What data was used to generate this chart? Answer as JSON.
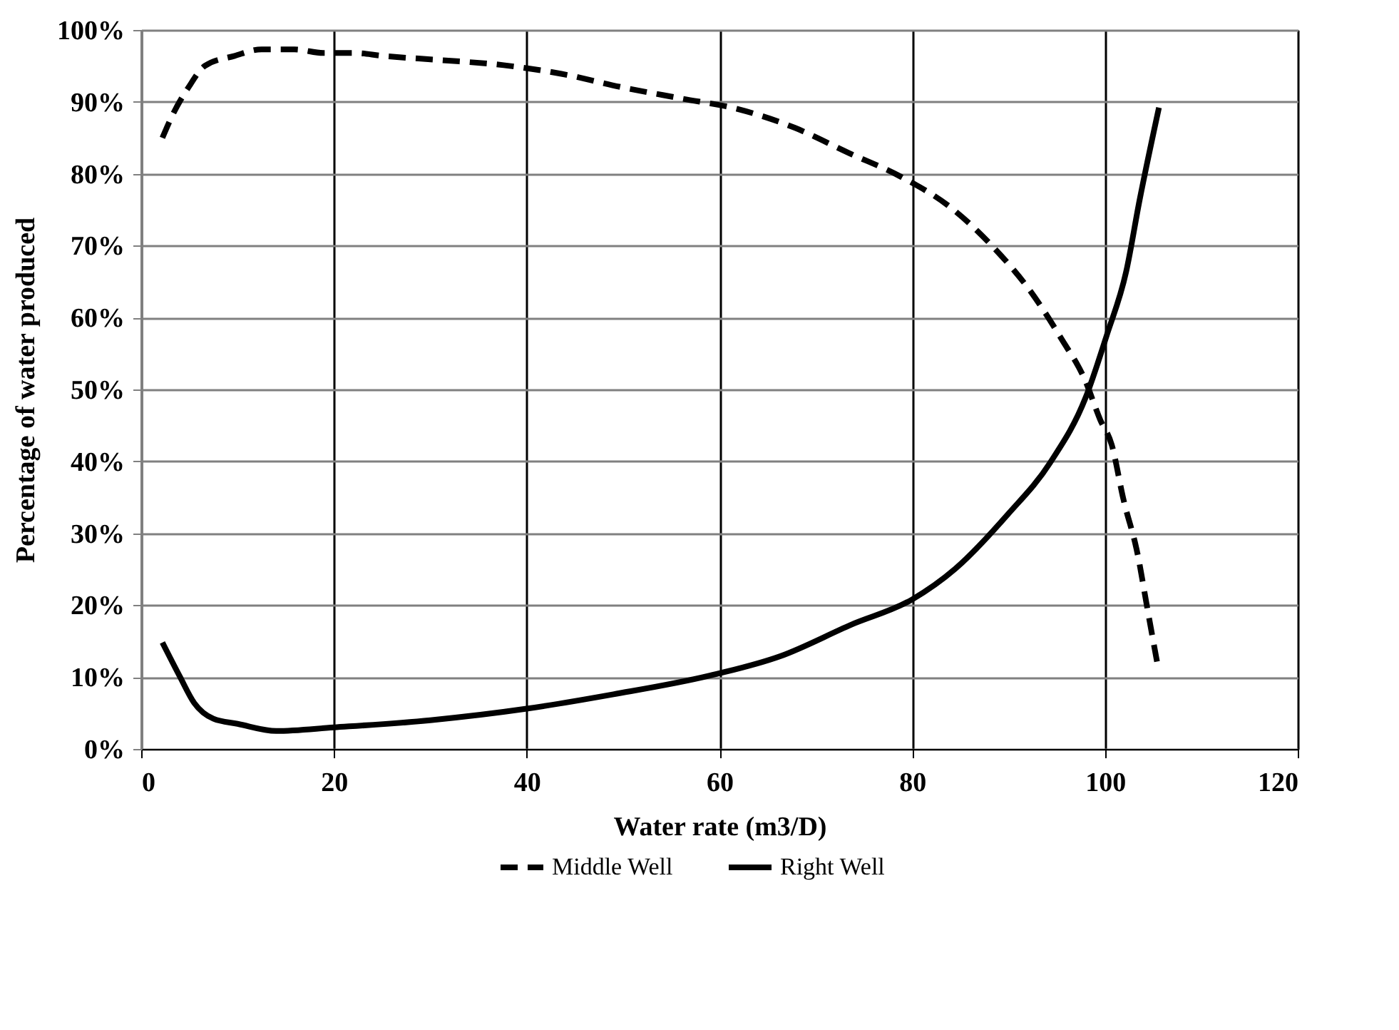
{
  "chart_data": {
    "type": "line",
    "xlabel": "Water rate (m3/D)",
    "ylabel": "Percentage of water produced",
    "xlim": [
      0,
      120
    ],
    "xticks": [
      0,
      20,
      40,
      60,
      80,
      100,
      120
    ],
    "ylim": [
      0,
      100
    ],
    "yticks": [
      {
        "value": 0,
        "label": "0%"
      },
      {
        "value": 10,
        "label": "10%"
      },
      {
        "value": 20,
        "label": "20%"
      },
      {
        "value": 30,
        "label": "30%"
      },
      {
        "value": 40,
        "label": "40%"
      },
      {
        "value": 50,
        "label": "50%"
      },
      {
        "value": 60,
        "label": "60%"
      },
      {
        "value": 70,
        "label": "70%"
      },
      {
        "value": 80,
        "label": "80%"
      },
      {
        "value": 90,
        "label": "90%"
      },
      {
        "value": 100,
        "label": "100%"
      }
    ],
    "grid": true,
    "legend": "bottom",
    "marker": "none",
    "series": [
      {
        "name": "Middle Well",
        "color": "#000000",
        "line_style": "dashed",
        "x": [
          2.2,
          3.3,
          4.9,
          6.6,
          9.7,
          12.5,
          15.9,
          18.9,
          22.1,
          25,
          31.2,
          37.6,
          43.6,
          50,
          55.9,
          61.9,
          67.8,
          73.4,
          78.8,
          84,
          88.4,
          92.3,
          95.5,
          97.9,
          99.5,
          100.7,
          101.9,
          103.4,
          104.4,
          105.5
        ],
        "values": [
          85,
          88.3,
          92,
          95,
          96.4,
          97.3,
          97.3,
          96.8,
          96.8,
          96.4,
          95.8,
          95.1,
          93.9,
          92,
          90.5,
          89,
          86.4,
          82.9,
          79.6,
          75.3,
          69.8,
          63.6,
          57,
          51.4,
          45.8,
          42.3,
          34.8,
          27,
          19.5,
          11.4
        ]
      },
      {
        "name": "Right Well",
        "color": "#000000",
        "line_style": "solid",
        "x": [
          2.2,
          4,
          5.5,
          7.5,
          10,
          14,
          20,
          30,
          40,
          49,
          59,
          66.3,
          73.7,
          80,
          84.5,
          89.9,
          94.3,
          98,
          100.2,
          102.2,
          103.6,
          105.6
        ],
        "values": [
          14.8,
          10.1,
          6.4,
          4.2,
          3.5,
          2.5,
          3,
          4,
          5.6,
          7.6,
          10.2,
          12.9,
          17.3,
          20.8,
          25.1,
          32.6,
          39.8,
          48.9,
          57.6,
          66.4,
          76.4,
          89.2
        ]
      }
    ]
  }
}
